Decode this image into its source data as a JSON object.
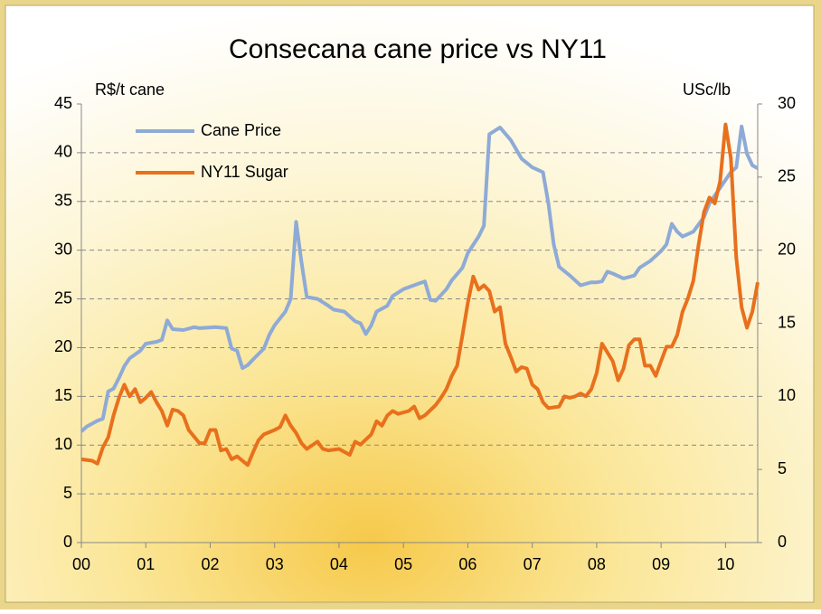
{
  "chart_data": {
    "type": "line",
    "title": "Consecana cane price vs NY11",
    "y_label": "R$/t cane",
    "y2_label": "USc/lb",
    "xlim": [
      0,
      126
    ],
    "xticks": [
      {
        "value": 0,
        "label": "00"
      },
      {
        "value": 12,
        "label": "01"
      },
      {
        "value": 24,
        "label": "02"
      },
      {
        "value": 36,
        "label": "03"
      },
      {
        "value": 48,
        "label": "04"
      },
      {
        "value": 60,
        "label": "05"
      },
      {
        "value": 72,
        "label": "06"
      },
      {
        "value": 84,
        "label": "07"
      },
      {
        "value": 96,
        "label": "08"
      },
      {
        "value": 108,
        "label": "09"
      },
      {
        "value": 120,
        "label": "10"
      }
    ],
    "ylim": [
      0,
      45
    ],
    "yticks": [
      0,
      5,
      10,
      15,
      20,
      25,
      30,
      35,
      40,
      45
    ],
    "y2lim": [
      0,
      30
    ],
    "y2ticks": [
      0,
      5,
      10,
      15,
      20,
      25,
      30
    ],
    "grid": true,
    "legend": "upper left",
    "series": [
      {
        "name": "Cane Price",
        "color": "#8eaad6",
        "axis": "y",
        "x": [
          0,
          1,
          3,
          4,
          5,
          6,
          7,
          8,
          9,
          11,
          12,
          14,
          15,
          16,
          17,
          19,
          21,
          22,
          25,
          27,
          28,
          29,
          30,
          31,
          32,
          34,
          35,
          36,
          38,
          39,
          40,
          41,
          42,
          44,
          46,
          47,
          49,
          51,
          52,
          53,
          54,
          55,
          57,
          58,
          60,
          61,
          63,
          64,
          65,
          66,
          68,
          69,
          71,
          72,
          74,
          75,
          76,
          78,
          80,
          82,
          84,
          86,
          87,
          88,
          89,
          91,
          93,
          95,
          96,
          97,
          98,
          99,
          101,
          103,
          104,
          106,
          108,
          109,
          110,
          111,
          112,
          114,
          116,
          117,
          119,
          121,
          122,
          123,
          124,
          125,
          126
        ],
        "values": [
          11.4,
          11.9,
          12.5,
          12.7,
          15.5,
          15.8,
          16.9,
          18.1,
          18.9,
          19.7,
          20.4,
          20.6,
          20.8,
          22.8,
          21.9,
          21.8,
          22.1,
          22.0,
          22.1,
          22.0,
          19.9,
          19.7,
          17.9,
          18.2,
          18.8,
          19.9,
          21.3,
          22.3,
          23.7,
          25.0,
          32.9,
          28.8,
          25.2,
          25.0,
          24.3,
          23.9,
          23.7,
          22.7,
          22.5,
          21.4,
          22.3,
          23.7,
          24.3,
          25.3,
          26.0,
          26.2,
          26.6,
          26.8,
          24.9,
          24.8,
          26.0,
          26.9,
          28.2,
          29.7,
          31.4,
          32.5,
          41.9,
          42.6,
          41.3,
          39.4,
          38.5,
          38.0,
          34.8,
          30.6,
          28.3,
          27.4,
          26.4,
          26.7,
          26.7,
          26.8,
          27.8,
          27.6,
          27.1,
          27.4,
          28.2,
          28.9,
          29.9,
          30.6,
          32.7,
          31.9,
          31.4,
          31.9,
          33.4,
          34.8,
          36.4,
          38.0,
          38.5,
          42.7,
          39.9,
          38.7,
          38.4
        ]
      },
      {
        "name": "NY11 Sugar",
        "color": "#e8701d",
        "axis": "y2",
        "x": [
          0,
          2,
          3,
          4,
          5,
          6,
          7,
          8,
          9,
          10,
          11,
          12,
          13,
          14,
          15,
          16,
          17,
          18,
          19,
          20,
          22,
          23,
          24,
          25,
          26,
          27,
          28,
          29,
          30,
          31,
          32,
          33,
          34,
          36,
          37,
          38,
          39,
          40,
          41,
          42,
          44,
          45,
          46,
          48,
          49,
          50,
          51,
          52,
          54,
          55,
          56,
          57,
          58,
          59,
          61,
          62,
          63,
          64,
          66,
          67,
          68,
          69,
          70,
          71,
          72,
          73,
          74,
          75,
          76,
          77,
          78,
          79,
          80,
          81,
          82,
          83,
          84,
          85,
          86,
          87,
          89,
          90,
          91,
          92,
          93,
          94,
          95,
          96,
          97,
          98,
          99,
          100,
          101,
          102,
          103,
          104,
          105,
          106,
          107,
          108,
          109,
          110,
          111,
          112,
          113,
          114,
          115,
          116,
          117,
          118,
          119,
          120,
          121,
          122,
          123,
          124,
          125,
          126
        ],
        "values": [
          5.7,
          5.6,
          5.4,
          6.5,
          7.2,
          8.7,
          9.9,
          10.8,
          10.0,
          10.5,
          9.6,
          9.9,
          10.3,
          9.6,
          9.0,
          8.0,
          9.1,
          9.0,
          8.7,
          7.7,
          6.8,
          6.8,
          7.7,
          7.7,
          6.3,
          6.4,
          5.7,
          5.9,
          5.6,
          5.3,
          6.2,
          7.0,
          7.4,
          7.7,
          7.9,
          8.7,
          8.0,
          7.5,
          6.8,
          6.4,
          6.9,
          6.4,
          6.3,
          6.4,
          6.2,
          6.0,
          6.9,
          6.7,
          7.4,
          8.3,
          8.0,
          8.7,
          9.0,
          8.8,
          9.0,
          9.3,
          8.5,
          8.7,
          9.4,
          9.9,
          10.5,
          11.4,
          12.1,
          14.2,
          16.4,
          18.2,
          17.3,
          17.6,
          17.2,
          15.8,
          16.1,
          13.6,
          12.7,
          11.7,
          12.0,
          11.9,
          10.8,
          10.5,
          9.6,
          9.2,
          9.3,
          10.0,
          9.9,
          10.0,
          10.2,
          10.0,
          10.5,
          11.6,
          13.6,
          13.0,
          12.4,
          11.1,
          11.9,
          13.5,
          13.9,
          13.9,
          12.1,
          12.1,
          11.4,
          12.4,
          13.4,
          13.4,
          14.2,
          15.8,
          16.7,
          17.9,
          20.4,
          22.6,
          23.6,
          23.2,
          24.7,
          28.6,
          26.3,
          19.5,
          16.1,
          14.7,
          15.8,
          17.8
        ]
      }
    ]
  }
}
